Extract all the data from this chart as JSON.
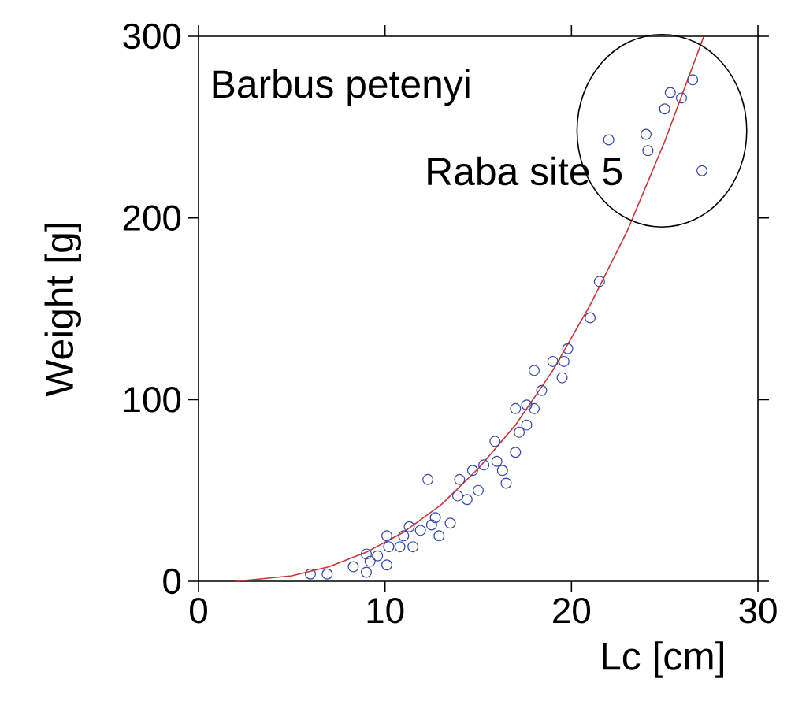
{
  "chart_data": {
    "type": "scatter",
    "xlabel": "Lc [cm]",
    "ylabel": "Weight [g]",
    "xlim": [
      0,
      30
    ],
    "ylim": [
      0,
      300
    ],
    "xticks": [
      0,
      10,
      20,
      30
    ],
    "yticks": [
      0,
      100,
      200,
      300
    ],
    "grid": false,
    "annotations": [
      "Barbus petenyi",
      "Raba site 5"
    ],
    "series": [
      {
        "color": "#3344aa",
        "marker": "circle",
        "x": [
          6.0,
          6.9,
          8.3,
          9.0,
          9.0,
          9.2,
          9.6,
          10.1,
          10.1,
          10.2,
          10.8,
          11.0,
          11.3,
          11.5,
          11.9,
          12.3,
          12.5,
          12.7,
          12.9,
          13.5,
          13.9,
          14.0,
          14.4,
          15.0,
          14.7,
          15.3,
          15.9,
          16.0,
          16.5,
          16.3,
          17.0,
          17.0,
          17.2,
          17.6,
          17.6,
          18.0,
          18.0,
          18.4,
          19.0,
          19.5,
          19.6,
          19.8,
          21.0,
          21.5,
          22.0,
          24.0,
          24.1,
          25.0,
          25.3,
          25.9,
          26.5,
          27.0
        ],
        "values": [
          4,
          4,
          8,
          5,
          15,
          11,
          14,
          9,
          25,
          19,
          19,
          25,
          30,
          19,
          28,
          56,
          31,
          35,
          25,
          32,
          47,
          56,
          45,
          50,
          61,
          64,
          77,
          66,
          54,
          61,
          71,
          95,
          82,
          86,
          97,
          116,
          95,
          105,
          121,
          112,
          121,
          128,
          145,
          165,
          243,
          246,
          237,
          260,
          269,
          266,
          276,
          226
        ]
      },
      {
        "type": "line",
        "color": "#cc3333",
        "marker": "none",
        "line_style": "solid",
        "x": [
          2,
          3,
          5,
          7,
          9,
          11,
          13,
          15,
          17,
          19,
          21,
          23,
          25,
          27.1
        ],
        "values": [
          0,
          1,
          3,
          8,
          16,
          27,
          42,
          62,
          86,
          116,
          152,
          193,
          242,
          300
        ]
      }
    ]
  }
}
